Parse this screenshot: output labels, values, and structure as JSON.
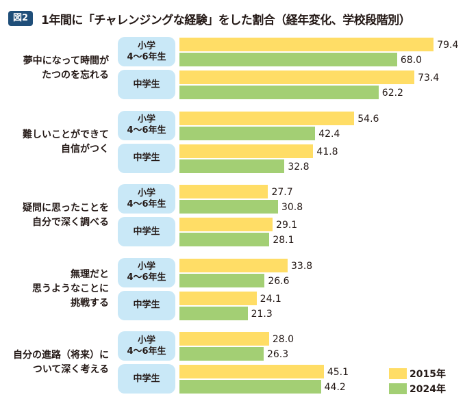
{
  "header": {
    "fig_badge": "図2",
    "title": "1年間に「チャレンジングな経験」をした割合（経年変化、学校段階別）"
  },
  "colors": {
    "y2015": "#ffdd66",
    "y2024": "#a3cf74",
    "pill_bg": "#c9e8f7",
    "badge": "#1f4e79"
  },
  "chart_data": {
    "type": "bar",
    "orientation": "horizontal",
    "title": "1年間に「チャレンジングな経験」をした割合（経年変化、学校段階別）",
    "xlabel": "",
    "ylabel": "",
    "xlim": [
      0,
      100
    ],
    "grid": false,
    "legend_position": "bottom-right",
    "legend": [
      "2015年",
      "2024年"
    ],
    "groups_labels": [
      "小学 4～6年生",
      "中学生"
    ],
    "categories": [
      {
        "label_lines": [
          "夢中になって時間が",
          "たつのを忘れる"
        ],
        "groups": [
          {
            "name_lines": [
              "小学",
              "4～6年生"
            ],
            "values": [
              79.4,
              68.0
            ]
          },
          {
            "name_lines": [
              "中学生"
            ],
            "values": [
              73.4,
              62.2
            ]
          }
        ]
      },
      {
        "label_lines": [
          "難しいことができて",
          "自信がつく"
        ],
        "groups": [
          {
            "name_lines": [
              "小学",
              "4～6年生"
            ],
            "values": [
              54.6,
              42.4
            ]
          },
          {
            "name_lines": [
              "中学生"
            ],
            "values": [
              41.8,
              32.8
            ]
          }
        ]
      },
      {
        "label_lines": [
          "疑問に思ったことを",
          "自分で深く調べる"
        ],
        "groups": [
          {
            "name_lines": [
              "小学",
              "4～6年生"
            ],
            "values": [
              27.7,
              30.8
            ]
          },
          {
            "name_lines": [
              "中学生"
            ],
            "values": [
              29.1,
              28.1
            ]
          }
        ]
      },
      {
        "label_lines": [
          "無理だと",
          "思うようなことに",
          "挑戦する"
        ],
        "groups": [
          {
            "name_lines": [
              "小学",
              "4～6年生"
            ],
            "values": [
              33.8,
              26.6
            ]
          },
          {
            "name_lines": [
              "中学生"
            ],
            "values": [
              24.1,
              21.3
            ]
          }
        ]
      },
      {
        "label_lines": [
          "自分の進路（将来）に",
          "ついて深く考える"
        ],
        "groups": [
          {
            "name_lines": [
              "小学",
              "4～6年生"
            ],
            "values": [
              28.0,
              26.3
            ]
          },
          {
            "name_lines": [
              "中学生"
            ],
            "values": [
              45.1,
              44.2
            ]
          }
        ]
      }
    ],
    "series": [
      {
        "name": "2015年",
        "values": [
          79.4,
          73.4,
          54.6,
          41.8,
          27.7,
          29.1,
          33.8,
          24.1,
          28.0,
          45.1
        ]
      },
      {
        "name": "2024年",
        "values": [
          68.0,
          62.2,
          42.4,
          32.8,
          30.8,
          28.1,
          26.6,
          21.3,
          26.3,
          44.2
        ]
      }
    ]
  }
}
